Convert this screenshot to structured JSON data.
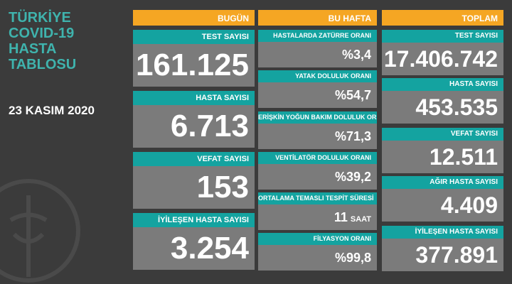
{
  "title_lines": [
    "TÜRKİYE",
    "COVID-19",
    "HASTA",
    "TABLOSU"
  ],
  "date": "23 KASIM 2020",
  "columns": [
    {
      "header": "BUGÜN",
      "cards": [
        {
          "label": "TEST SAYISI",
          "value": "161.125"
        },
        {
          "label": "HASTA SAYISI",
          "value": "6.713"
        },
        {
          "label": "VEFAT SAYISI",
          "value": "153"
        },
        {
          "label": "İYİLEŞEN HASTA SAYISI",
          "value": "3.254"
        }
      ]
    },
    {
      "header": "BU HAFTA",
      "cards": [
        {
          "label": "HASTALARDA ZATÜRRE ORANI",
          "value": "%3,4"
        },
        {
          "label": "YATAK DOLULUK ORANI",
          "value": "%54,7"
        },
        {
          "label": "ERİŞKİN YOĞUN BAKIM DOLULUK ORANI",
          "value": "%71,3"
        },
        {
          "label": "VENTİLATÖR DOLULUK ORANI",
          "value": "%39,2"
        },
        {
          "label": "ORTALAMA TEMASLI TESPİT SÜRESİ",
          "value": "11",
          "unit": "SAAT"
        },
        {
          "label": "FİLYASYON ORANI",
          "value": "%99,8"
        }
      ]
    },
    {
      "header": "TOPLAM",
      "cards": [
        {
          "label": "TEST SAYISI",
          "value": "17.406.742"
        },
        {
          "label": "HASTA SAYISI",
          "value": "453.535"
        },
        {
          "label": "VEFAT SAYISI",
          "value": "12.511"
        },
        {
          "label": "AĞIR HASTA SAYISI",
          "value": "4.409"
        },
        {
          "label": "İYİLEŞEN HASTA SAYISI",
          "value": "377.891"
        }
      ]
    }
  ]
}
